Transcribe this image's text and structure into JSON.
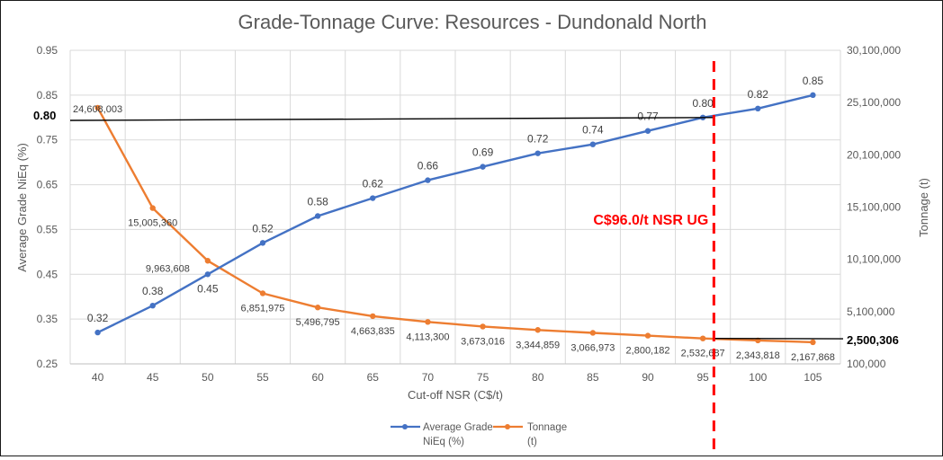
{
  "chart_data": {
    "type": "line",
    "title": "Grade-Tonnage Curve: Resources - Dundonald North",
    "xlabel": "Cut-off NSR (C$/t)",
    "ylabel": "Average Grade NiEq (%)",
    "y2label": "Tonnage (t)",
    "categories": [
      "40",
      "45",
      "50",
      "55",
      "60",
      "65",
      "70",
      "75",
      "80",
      "85",
      "90",
      "95",
      "100",
      "105"
    ],
    "ylim": [
      0.25,
      0.95
    ],
    "yticks": [
      "0.25",
      "0.35",
      "0.45",
      "0.55",
      "0.65",
      "0.75",
      "0.85",
      "0.95"
    ],
    "y2lim": [
      100000,
      30100000
    ],
    "y2ticks": [
      "100,000",
      "5,100,000",
      "10,100,000",
      "15,100,000",
      "20,100,000",
      "25,100,000",
      "30,100,000"
    ],
    "grid": true,
    "legend": "bottom",
    "series": [
      {
        "name": "Average Grade NiEq (%)",
        "axis": "left",
        "color": "#4472C4",
        "values": [
          0.32,
          0.38,
          0.45,
          0.52,
          0.58,
          0.62,
          0.66,
          0.69,
          0.72,
          0.74,
          0.77,
          0.8,
          0.82,
          0.85
        ],
        "labels": [
          "0.32",
          "0.38",
          "0.45",
          "0.52",
          "0.58",
          "0.62",
          "0.66",
          "0.69",
          "0.72",
          "0.74",
          "0.77",
          "0.80",
          "0.82",
          "0.85"
        ]
      },
      {
        "name": "Tonnage (t)",
        "axis": "right",
        "color": "#ED7D31",
        "values": [
          24608003,
          15005360,
          9963608,
          6851975,
          5496795,
          4663835,
          4113300,
          3673016,
          3344859,
          3066973,
          2800182,
          2532687,
          2343818,
          2167868
        ],
        "labels": [
          "24,608,003",
          "15,005,360",
          "9,963,608",
          "6,851,975",
          "5,496,795",
          "4,663,835",
          "4,113,300",
          "3,673,016",
          "3,344,859",
          "3,066,973",
          "2,800,182",
          "2,532,687",
          "2,343,818",
          "2,167,868"
        ]
      }
    ],
    "annotations": {
      "cutoff_label": "C$96.0/t NSR UG",
      "cutoff_value": 96.0,
      "cutoff_color": "#FF0000",
      "grade_at_cutoff": "0.80",
      "grade_at_cutoff_value": 0.8,
      "tonnage_at_cutoff": "2,500,306",
      "tonnage_at_cutoff_value": 2500306
    },
    "legend_entries": [
      {
        "line1": "Average Grade",
        "line2": "NiEq (%)",
        "color": "#4472C4"
      },
      {
        "line1": "Tonnage",
        "line2": "(t)",
        "color": "#ED7D31"
      }
    ]
  }
}
